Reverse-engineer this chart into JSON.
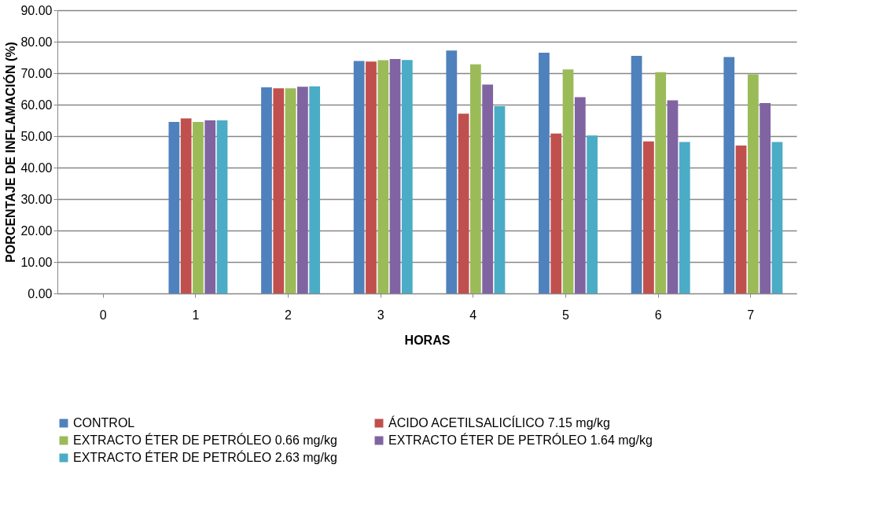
{
  "chart_data": {
    "type": "bar",
    "xlabel": "HORAS",
    "ylabel": "PORCENTAJE DE INFLAMACIÓN (%)",
    "categories": [
      "0",
      "1",
      "2",
      "3",
      "4",
      "5",
      "6",
      "7"
    ],
    "series": [
      {
        "name": "CONTROL",
        "color": "#4f81bd",
        "values": [
          0,
          54.5,
          65.5,
          73.9,
          77.2,
          76.5,
          75.5,
          75.1
        ]
      },
      {
        "name": "ÁCIDO ACETILSALICÍLICO 7.15 mg/kg",
        "color": "#c0504d",
        "values": [
          0,
          55.6,
          65.2,
          73.7,
          57.1,
          50.8,
          48.3,
          47.0
        ]
      },
      {
        "name": "EXTRACTO ÉTER DE PETRÓLEO  0.66 mg/kg",
        "color": "#9bbb59",
        "values": [
          0,
          54.5,
          65.2,
          74.1,
          72.8,
          71.2,
          70.3,
          69.6
        ]
      },
      {
        "name": "EXTRACTO ÉTER DE PETRÓLEO   1.64 mg/kg",
        "color": "#8064a2",
        "values": [
          0,
          55.0,
          65.7,
          74.5,
          66.4,
          62.4,
          61.4,
          60.5
        ]
      },
      {
        "name": "EXTRACTO ÉTER DE PETRÓLEO  2.63 mg/kg",
        "color": "#4bacc6",
        "values": [
          0,
          55.0,
          65.8,
          74.2,
          59.5,
          50.2,
          48.1,
          48.1
        ]
      }
    ],
    "ylim": [
      0,
      90
    ],
    "yticks": [
      {
        "value": 0,
        "label": "0.00"
      },
      {
        "value": 10,
        "label": "10.00"
      },
      {
        "value": 20,
        "label": "20.00"
      },
      {
        "value": 30,
        "label": "30.00"
      },
      {
        "value": 40,
        "label": "40.00"
      },
      {
        "value": 50,
        "label": "50.00"
      },
      {
        "value": 60,
        "label": "60.00"
      },
      {
        "value": 70,
        "label": "70.00"
      },
      {
        "value": 80,
        "label": "80.00"
      },
      {
        "value": 90,
        "label": "90.00"
      }
    ],
    "grid": "y",
    "legend": "bottom"
  }
}
